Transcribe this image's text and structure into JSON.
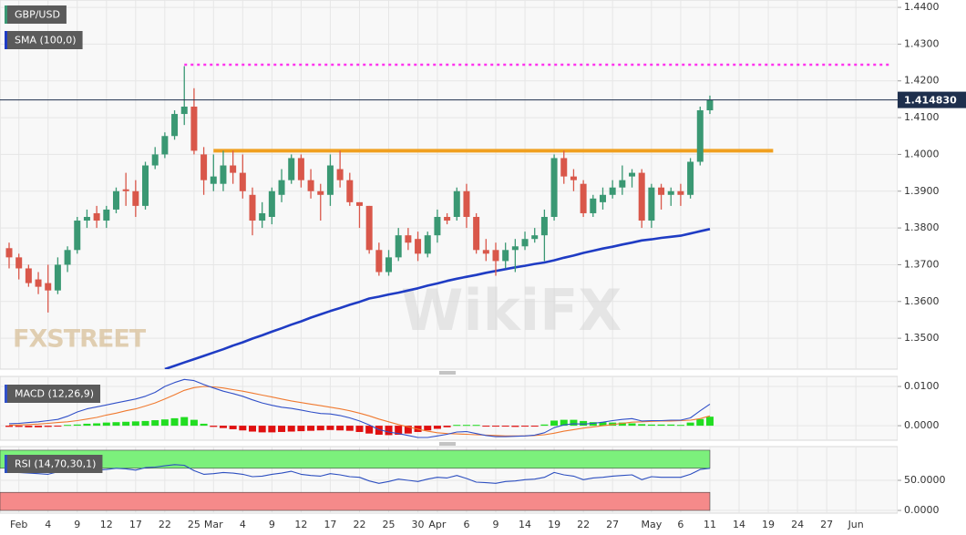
{
  "chart_data": [
    {
      "type": "candlestick",
      "name": "GBP/USD",
      "up_color": "#3a9873",
      "down_color": "#d9574a",
      "categories": [
        null,
        "Feb",
        null,
        null,
        "4",
        null,
        null,
        "9",
        null,
        null,
        "12",
        null,
        null,
        "17",
        null,
        null,
        "22",
        null,
        null,
        "25",
        null,
        "Mar",
        null,
        null,
        "4",
        null,
        null,
        "9",
        null,
        null,
        "12",
        null,
        null,
        "17",
        null,
        null,
        "22",
        null,
        null,
        "25",
        null,
        null,
        "30",
        null,
        "Apr",
        null,
        null,
        "6",
        null,
        null,
        "9",
        null,
        null,
        "14",
        null,
        null,
        "19",
        null,
        null,
        "22",
        null,
        null,
        "27",
        null,
        null,
        null,
        "May",
        null,
        null,
        "6",
        null,
        null,
        "11",
        null,
        null,
        "14",
        null,
        null,
        "19",
        null,
        null,
        "24",
        null,
        null,
        "27",
        null,
        null,
        "Jun",
        null,
        null,
        null
      ],
      "open": [
        1.3745,
        1.372,
        1.369,
        1.366,
        1.365,
        1.363,
        1.37,
        1.374,
        1.382,
        1.384,
        1.382,
        1.385,
        1.3905,
        1.39,
        1.386,
        1.397,
        1.4,
        1.405,
        1.411,
        1.413,
        1.4,
        1.392,
        1.392,
        1.397,
        1.395,
        1.389,
        1.382,
        1.383,
        1.389,
        1.393,
        1.399,
        1.393,
        1.39,
        1.389,
        1.396,
        1.393,
        1.387,
        1.386,
        1.374,
        1.368,
        1.372,
        1.378,
        1.377,
        1.373,
        1.378,
        1.383,
        1.383,
        1.39,
        1.383,
        1.374,
        1.374,
        1.371,
        1.374,
        1.375,
        1.377,
        1.378,
        1.383,
        1.399,
        1.394,
        1.392,
        1.384,
        1.387,
        1.389,
        1.391,
        1.394,
        1.395,
        1.382,
        1.391,
        1.389,
        1.39,
        1.389,
        1.398,
        1.412,
        null,
        null,
        null,
        null,
        null,
        null,
        null,
        null,
        null,
        null,
        null,
        null,
        null,
        null,
        null,
        null,
        null,
        null
      ],
      "high": [
        1.376,
        1.373,
        1.37,
        1.368,
        1.37,
        1.372,
        1.375,
        1.383,
        1.385,
        1.386,
        1.386,
        1.391,
        1.395,
        1.393,
        1.398,
        1.402,
        1.406,
        1.412,
        1.424,
        1.418,
        1.402,
        1.4,
        1.401,
        1.401,
        1.4,
        1.391,
        1.387,
        1.391,
        1.396,
        1.4,
        1.4,
        1.396,
        1.392,
        1.4,
        1.401,
        1.395,
        1.387,
        1.386,
        1.376,
        1.374,
        1.38,
        1.38,
        1.379,
        1.379,
        1.385,
        1.384,
        1.391,
        1.392,
        1.384,
        1.377,
        1.376,
        1.376,
        1.377,
        1.379,
        1.38,
        1.385,
        1.4,
        1.401,
        1.396,
        1.393,
        1.389,
        1.391,
        1.393,
        1.397,
        1.396,
        1.396,
        1.392,
        1.392,
        1.391,
        1.392,
        1.399,
        1.413,
        1.416,
        null,
        null,
        null,
        null,
        null,
        null,
        null,
        null,
        null,
        null,
        null,
        null,
        null,
        null,
        null,
        null,
        null,
        null
      ],
      "low": [
        1.369,
        1.366,
        1.364,
        1.362,
        1.357,
        1.362,
        1.368,
        1.373,
        1.38,
        1.38,
        1.38,
        1.384,
        1.386,
        1.383,
        1.385,
        1.396,
        1.399,
        1.404,
        1.408,
        1.4,
        1.389,
        1.39,
        1.39,
        1.392,
        1.388,
        1.378,
        1.38,
        1.381,
        1.387,
        1.392,
        1.391,
        1.388,
        1.382,
        1.386,
        1.391,
        1.386,
        1.38,
        1.373,
        1.367,
        1.367,
        1.371,
        1.374,
        1.371,
        1.372,
        1.376,
        1.381,
        1.382,
        1.38,
        1.373,
        1.371,
        1.367,
        1.369,
        1.368,
        1.374,
        1.376,
        1.371,
        1.382,
        1.392,
        1.39,
        1.383,
        1.383,
        1.385,
        1.388,
        1.389,
        1.391,
        1.38,
        1.38,
        1.385,
        1.386,
        1.386,
        1.388,
        1.397,
        1.411,
        null,
        null,
        null,
        null,
        null,
        null,
        null,
        null,
        null,
        null,
        null,
        null,
        null,
        null,
        null,
        null,
        null,
        null
      ],
      "close": [
        1.372,
        1.369,
        1.365,
        1.364,
        1.363,
        1.37,
        1.374,
        1.382,
        1.383,
        1.382,
        1.385,
        1.39,
        1.39,
        1.386,
        1.397,
        1.4,
        1.405,
        1.411,
        1.413,
        1.401,
        1.393,
        1.394,
        1.397,
        1.395,
        1.39,
        1.382,
        1.384,
        1.39,
        1.393,
        1.399,
        1.393,
        1.39,
        1.389,
        1.397,
        1.393,
        1.387,
        1.386,
        1.374,
        1.368,
        1.372,
        1.378,
        1.376,
        1.373,
        1.378,
        1.383,
        1.382,
        1.39,
        1.383,
        1.374,
        1.373,
        1.371,
        1.374,
        1.375,
        1.377,
        1.378,
        1.383,
        1.399,
        1.394,
        1.393,
        1.384,
        1.388,
        1.389,
        1.391,
        1.393,
        1.395,
        1.382,
        1.391,
        1.389,
        1.39,
        1.389,
        1.398,
        1.412,
        1.41483,
        null,
        null,
        null,
        null,
        null,
        null,
        null,
        null,
        null,
        null,
        null,
        null,
        null,
        null,
        null,
        null,
        null,
        null
      ],
      "sma": {
        "name": "SMA (100,0)",
        "color": "#1f3cc4",
        "values": [
          null,
          null,
          null,
          null,
          null,
          null,
          null,
          null,
          null,
          null,
          null,
          null,
          null,
          null,
          null,
          null,
          1.3416,
          1.3425,
          1.3434,
          1.3443,
          1.3452,
          1.3461,
          1.347,
          1.348,
          1.3489,
          1.3499,
          1.3508,
          1.3518,
          1.3527,
          1.3537,
          1.3546,
          1.3556,
          1.3565,
          1.3574,
          1.3582,
          1.3591,
          1.3599,
          1.3608,
          1.3613,
          1.3619,
          1.3624,
          1.363,
          1.3636,
          1.3643,
          1.3649,
          1.3656,
          1.3662,
          1.3667,
          1.3672,
          1.3678,
          1.3683,
          1.3688,
          1.3693,
          1.3697,
          1.3702,
          1.3706,
          1.3712,
          1.3719,
          1.3725,
          1.3732,
          1.3738,
          1.3744,
          1.3749,
          1.3755,
          1.376,
          1.3766,
          1.3769,
          1.3773,
          1.3776,
          1.3779,
          1.3785,
          1.3791,
          1.3797,
          null,
          null,
          null,
          null,
          null,
          null,
          null,
          null,
          null,
          null,
          null,
          null,
          null,
          null,
          null,
          null,
          null,
          null
        ]
      },
      "hlines": [
        {
          "value": 1.4244,
          "x": [
            18,
            90.5
          ],
          "color": "#ff33ee",
          "style": "dotted"
        },
        {
          "value": 1.401,
          "x": [
            21,
            78.5
          ],
          "color": "#f0a020",
          "style": "solid"
        }
      ],
      "last_price": {
        "value": 1.41483,
        "label": "1.414830",
        "color": "#1e2f4d"
      },
      "ylim": [
        1.3416,
        1.442
      ],
      "yticks": [
        {
          "value": 1.44,
          "label": "1.4400"
        },
        {
          "value": 1.43,
          "label": "1.4300"
        },
        {
          "value": 1.42,
          "label": "1.4200"
        },
        {
          "value": 1.41,
          "label": "1.4100"
        },
        {
          "value": 1.4,
          "label": "1.4000"
        },
        {
          "value": 1.39,
          "label": "1.3900"
        },
        {
          "value": 1.38,
          "label": "1.3800"
        },
        {
          "value": 1.37,
          "label": "1.3700"
        },
        {
          "value": 1.36,
          "label": "1.3600"
        },
        {
          "value": 1.35,
          "label": "1.3500"
        }
      ],
      "grid": true,
      "watermarks": [
        "FXSTREET",
        "WikiFX"
      ]
    },
    {
      "type": "macd",
      "name": "MACD (12,26,9)",
      "macd": {
        "color": "#3150c8",
        "values": [
          0.0005,
          0.0006,
          0.0008,
          0.001,
          0.0013,
          0.0016,
          0.0024,
          0.0035,
          0.0043,
          0.0048,
          0.0053,
          0.0058,
          0.0063,
          0.0068,
          0.0075,
          0.0085,
          0.01,
          0.011,
          0.0118,
          0.0115,
          0.0105,
          0.0096,
          0.0088,
          0.0082,
          0.0075,
          0.0066,
          0.0058,
          0.0052,
          0.0047,
          0.0044,
          0.004,
          0.0035,
          0.0031,
          0.003,
          0.0026,
          0.002,
          0.0012,
          0.0002,
          -0.001,
          -0.0016,
          -0.002,
          -0.0025,
          -0.003,
          -0.003,
          -0.0026,
          -0.0022,
          -0.0016,
          -0.0015,
          -0.002,
          -0.0025,
          -0.0028,
          -0.0028,
          -0.0027,
          -0.0026,
          -0.0024,
          -0.0018,
          -0.0005,
          0.0002,
          0.0005,
          0.0004,
          0.0006,
          0.0009,
          0.0013,
          0.0016,
          0.0018,
          0.0012,
          0.0013,
          0.0013,
          0.0014,
          0.0014,
          0.002,
          0.0038,
          0.0055,
          null,
          null,
          null,
          null,
          null,
          null,
          null,
          null,
          null,
          null,
          null,
          null,
          null,
          null,
          null,
          null,
          null,
          null
        ]
      },
      "signal": {
        "color": "#f07a30",
        "values": [
          0.0001,
          0.0002,
          0.0003,
          0.0004,
          0.0006,
          0.0008,
          0.001,
          0.0013,
          0.0017,
          0.0021,
          0.0027,
          0.0032,
          0.0038,
          0.0043,
          0.005,
          0.0058,
          0.0068,
          0.0079,
          0.009,
          0.0097,
          0.01,
          0.0099,
          0.0096,
          0.0092,
          0.0088,
          0.0083,
          0.0078,
          0.0073,
          0.0068,
          0.0063,
          0.0059,
          0.0055,
          0.0051,
          0.0047,
          0.0043,
          0.0038,
          0.0032,
          0.0025,
          0.0017,
          0.001,
          0.0003,
          -0.0003,
          -0.0009,
          -0.0014,
          -0.0018,
          -0.002,
          -0.0021,
          -0.0022,
          -0.0023,
          -0.0024,
          -0.0025,
          -0.0026,
          -0.0026,
          -0.0026,
          -0.0025,
          -0.0023,
          -0.0019,
          -0.0014,
          -0.001,
          -0.0006,
          -0.0003,
          0.0,
          0.0003,
          0.0006,
          0.0009,
          0.001,
          0.0011,
          0.0012,
          0.0012,
          0.0013,
          0.0014,
          0.0018,
          0.0025,
          null,
          null,
          null,
          null,
          null,
          null,
          null,
          null,
          null,
          null,
          null,
          null,
          null,
          null,
          null,
          null,
          null,
          null
        ]
      },
      "histogram": {
        "up_color": "#22dd22",
        "down_color": "#e01010",
        "values": [
          -0.0003,
          -0.0003,
          -0.0004,
          -0.0004,
          -0.0003,
          -0.0002,
          0.0002,
          0.0003,
          0.0005,
          0.0006,
          0.0008,
          0.0009,
          0.001,
          0.0011,
          0.0012,
          0.0014,
          0.0016,
          0.0019,
          0.0022,
          0.0015,
          0.0005,
          -0.0003,
          -0.0006,
          -0.0009,
          -0.0012,
          -0.0015,
          -0.0017,
          -0.0017,
          -0.0016,
          -0.0015,
          -0.0014,
          -0.0013,
          -0.0012,
          -0.0011,
          -0.0012,
          -0.0013,
          -0.0016,
          -0.002,
          -0.0023,
          -0.0024,
          -0.0023,
          -0.002,
          -0.0016,
          -0.0012,
          -0.0008,
          -0.0004,
          0.0002,
          0.0002,
          0.0002,
          -0.0002,
          -0.0002,
          -0.0002,
          -0.0003,
          -0.0002,
          -0.0001,
          0.0003,
          0.0013,
          0.0015,
          0.0015,
          0.0012,
          0.0009,
          0.0009,
          0.0008,
          0.0008,
          0.0006,
          0.0004,
          0.0003,
          0.0003,
          0.0003,
          0.0002,
          0.0008,
          0.0017,
          0.0023,
          null,
          null,
          null,
          null,
          null,
          null,
          null,
          null,
          null,
          null,
          null,
          null,
          null,
          null,
          null,
          null,
          null,
          null
        ]
      },
      "ylim": [
        -0.0037,
        0.01256
      ],
      "yticks": [
        {
          "value": 0.01,
          "label": "0.0100"
        },
        {
          "value": 0,
          "label": "0.0000"
        }
      ],
      "grid": true
    },
    {
      "type": "rsi",
      "name": "RSI (14,70,30,1)",
      "rsi": {
        "color": "#2d4fc0",
        "values": [
          64,
          63,
          62,
          61,
          60,
          64,
          65,
          68,
          68,
          67,
          68,
          70,
          69,
          67,
          71,
          72,
          74,
          76,
          75,
          66,
          60,
          61,
          63,
          62,
          60,
          56,
          57,
          60,
          62,
          65,
          60,
          58,
          57,
          61,
          59,
          56,
          55,
          49,
          45,
          48,
          52,
          50,
          48,
          52,
          55,
          54,
          58,
          53,
          47,
          46,
          45,
          48,
          49,
          51,
          52,
          55,
          63,
          59,
          57,
          51,
          54,
          55,
          57,
          58,
          59,
          51,
          56,
          55,
          55,
          55,
          60,
          68,
          70,
          null,
          null,
          null,
          null,
          null,
          null,
          null,
          null,
          null,
          null,
          null,
          null,
          null,
          null,
          null,
          null,
          null,
          null
        ]
      },
      "bands": [
        {
          "from": 70,
          "to": 100,
          "color": "#7cf07c"
        },
        {
          "from": 0,
          "to": 30,
          "color": "#f58a8a"
        }
      ],
      "ylim": [
        -4.5,
        106
      ],
      "yticks": [
        {
          "value": 50,
          "label": "50.0000"
        },
        {
          "value": 0,
          "label": "0.0000"
        }
      ],
      "grid": true
    }
  ]
}
